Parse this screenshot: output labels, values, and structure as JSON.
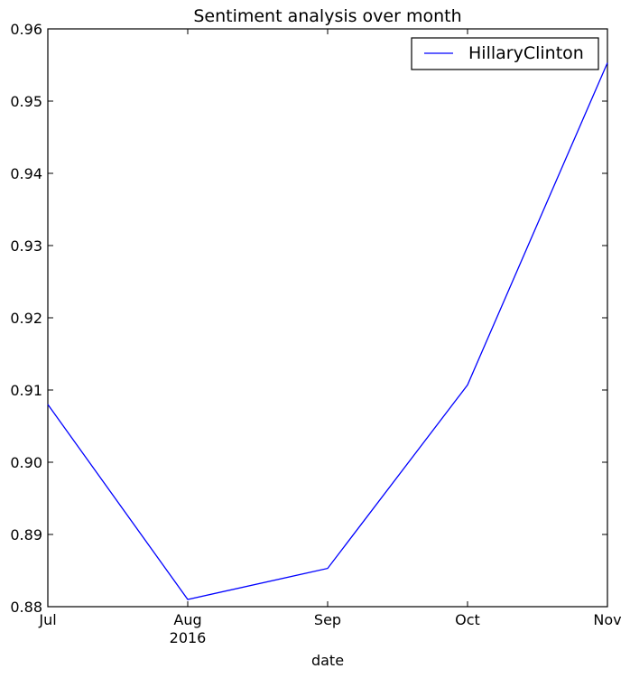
{
  "chart_data": {
    "type": "line",
    "title": "Sentiment analysis over month",
    "xlabel": "date",
    "ylabel": "",
    "x_ticks": [
      "Jul",
      "Aug",
      "Sep",
      "Oct",
      "Nov"
    ],
    "x_tick_sublabel": {
      "index": 1,
      "text": "2016"
    },
    "y_ticks": [
      "0.88",
      "0.89",
      "0.90",
      "0.91",
      "0.92",
      "0.93",
      "0.94",
      "0.95",
      "0.96"
    ],
    "ylim": [
      0.88,
      0.96
    ],
    "grid": false,
    "legend_position": "upper right",
    "series": [
      {
        "name": "HillaryClinton",
        "color": "#0000ff",
        "x": [
          "Jul",
          "Aug",
          "Sep",
          "Oct",
          "Nov"
        ],
        "values": [
          0.908,
          0.881,
          0.8853,
          0.9107,
          0.9553
        ]
      }
    ]
  }
}
